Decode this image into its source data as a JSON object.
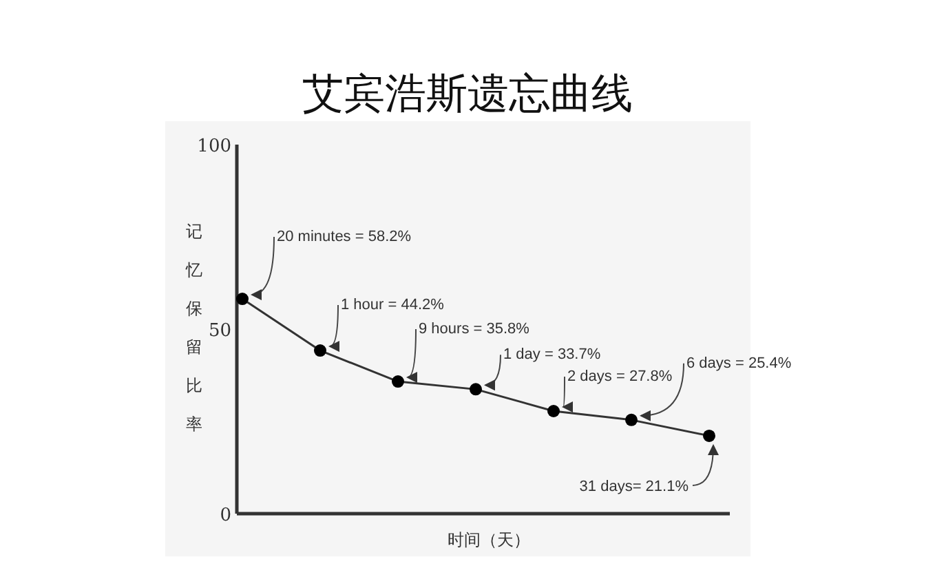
{
  "chart_data": {
    "type": "line",
    "title": "艾宾浩斯遗忘曲线",
    "xlabel": "时间（天）",
    "ylabel": "记忆保留比率",
    "categories": [
      null,
      null,
      null,
      null,
      null,
      null,
      null
    ],
    "series": [
      {
        "color": "#333333",
        "values": [
          58.2,
          44.2,
          35.8,
          33.7,
          27.8,
          25.4,
          21.1
        ],
        "value_labels": [
          "20 minutes = 58.2%",
          "1 hour = 44.2%",
          "9 hours = 35.8%",
          "1 day = 33.7%",
          "2 days = 27.8%",
          "6 days = 25.4%",
          "31 days= 21.1%"
        ]
      }
    ],
    "ylim": [
      0,
      100
    ],
    "yticks": [
      0,
      50,
      100
    ],
    "marker": "circle"
  }
}
